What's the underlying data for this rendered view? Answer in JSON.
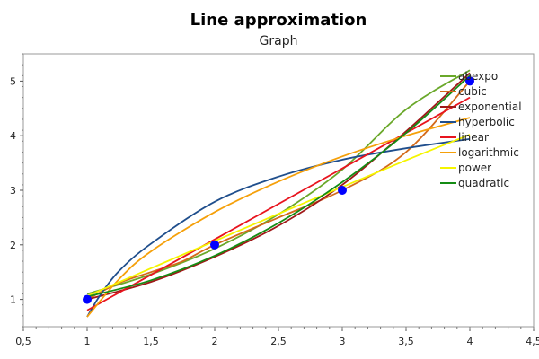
{
  "chart_data": {
    "type": "line",
    "title": "Line approximation",
    "subtitle": "Graph",
    "xlabel": "",
    "ylabel": "",
    "xlim": [
      0.5,
      4.5
    ],
    "ylim": [
      0.5,
      5.5
    ],
    "x_ticks": [
      0.5,
      1,
      1.5,
      2,
      2.5,
      3,
      3.5,
      4,
      4.5
    ],
    "x_tick_labels": [
      "0,5",
      "1",
      "1,5",
      "2",
      "2,5",
      "3",
      "3,5",
      "4",
      "4,5"
    ],
    "y_ticks": [
      1,
      2,
      3,
      4,
      5
    ],
    "y_tick_labels": [
      "1",
      "2",
      "3",
      "4",
      "5"
    ],
    "grid": false,
    "legend_position": "top-right",
    "points": [
      {
        "x": 1,
        "y": 1
      },
      {
        "x": 2,
        "y": 2
      },
      {
        "x": 3,
        "y": 3
      },
      {
        "x": 4,
        "y": 5
      }
    ],
    "points_color": "#0000ff",
    "series": [
      {
        "name": "abexpo",
        "color": "#6aa82a",
        "x": [
          1,
          1.5,
          2,
          2.5,
          3,
          3.5,
          4
        ],
        "y": [
          1.1,
          1.46,
          1.93,
          2.56,
          3.38,
          4.48,
          5.2
        ]
      },
      {
        "name": "cubic",
        "color": "#d46a1a",
        "x": [
          1,
          1.25,
          1.5,
          1.75,
          2,
          2.5,
          3,
          3.5,
          4
        ],
        "y": [
          1,
          1.3,
          1.5,
          1.7,
          2,
          2.5,
          3,
          3.7,
          5
        ]
      },
      {
        "name": "exponential",
        "color": "#a01818",
        "x": [
          1,
          1.5,
          2,
          2.5,
          3,
          3.5,
          4
        ],
        "y": [
          1.0,
          1.32,
          1.78,
          2.35,
          3.1,
          4.08,
          5.15
        ]
      },
      {
        "name": "hyperbolic",
        "color": "#1f4e8c",
        "x": [
          1,
          1.1,
          1.25,
          1.5,
          2,
          2.5,
          3,
          3.5,
          4
        ],
        "y": [
          0.68,
          1.07,
          1.52,
          2.02,
          2.79,
          3.25,
          3.56,
          3.77,
          3.94
        ]
      },
      {
        "name": "linear",
        "color": "#e8141e",
        "x": [
          1,
          4
        ],
        "y": [
          0.8,
          4.7
        ]
      },
      {
        "name": "logarithmic",
        "color": "#f5a00a",
        "x": [
          1,
          1.25,
          1.5,
          2,
          2.5,
          3,
          3.5,
          4
        ],
        "y": [
          0.68,
          1.37,
          1.88,
          2.6,
          3.16,
          3.62,
          4.0,
          4.33
        ]
      },
      {
        "name": "power",
        "color": "#f5f500",
        "x": [
          1,
          1.5,
          2,
          2.5,
          3,
          3.5,
          4
        ],
        "y": [
          1.06,
          1.57,
          2.07,
          2.57,
          3.06,
          3.55,
          4.02
        ]
      },
      {
        "name": "quadratic",
        "color": "#148c14",
        "x": [
          1,
          1.5,
          2,
          2.5,
          3,
          3.5,
          4
        ],
        "y": [
          1.05,
          1.35,
          1.8,
          2.4,
          3.15,
          4.05,
          5.1
        ]
      }
    ]
  }
}
